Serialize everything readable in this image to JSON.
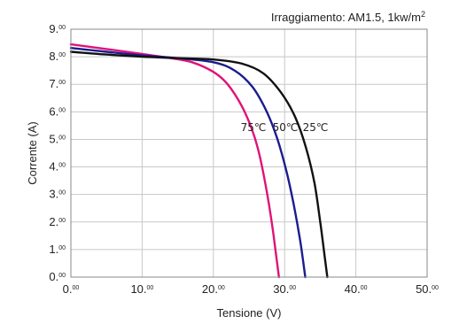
{
  "chart_data": {
    "type": "line",
    "title": "",
    "condition_text": "Irraggiamento: AM1.5, 1kw/m",
    "condition_sup": "2",
    "xlabel": "Tensione (V)",
    "ylabel": "Corrente (A)",
    "xlim": [
      0,
      50
    ],
    "ylim": [
      0,
      9
    ],
    "grid": true,
    "x_ticks": [
      {
        "main": "0.",
        "sub": "00"
      },
      {
        "main": "10.",
        "sub": "00"
      },
      {
        "main": "20.",
        "sub": "00"
      },
      {
        "main": "30.",
        "sub": "00"
      },
      {
        "main": "40.",
        "sub": "00"
      },
      {
        "main": "50.",
        "sub": "00"
      }
    ],
    "y_ticks": [
      {
        "main": "0.",
        "sub": "00"
      },
      {
        "main": "1.",
        "sub": "00"
      },
      {
        "main": "2.",
        "sub": "00"
      },
      {
        "main": "3.",
        "sub": "00"
      },
      {
        "main": "4.",
        "sub": "00"
      },
      {
        "main": "5.",
        "sub": "00"
      },
      {
        "main": "6.",
        "sub": "00"
      },
      {
        "main": "7.",
        "sub": "00"
      },
      {
        "main": "8.",
        "sub": "00"
      },
      {
        "main": "9.",
        "sub": "00"
      }
    ],
    "series": [
      {
        "name": "75℃",
        "color": "#e0127a",
        "points": [
          [
            0,
            8.45
          ],
          [
            5,
            8.28
          ],
          [
            10,
            8.1
          ],
          [
            14,
            7.95
          ],
          [
            17,
            7.8
          ],
          [
            20,
            7.45
          ],
          [
            22,
            7.0
          ],
          [
            24,
            6.2
          ],
          [
            25.5,
            5.3
          ],
          [
            26.5,
            4.4
          ],
          [
            27.5,
            3.1
          ],
          [
            28.3,
            1.8
          ],
          [
            28.8,
            0.8
          ],
          [
            29.2,
            0.0
          ]
        ]
      },
      {
        "name": "50℃",
        "color": "#1c1c8f",
        "points": [
          [
            0,
            8.32
          ],
          [
            5,
            8.18
          ],
          [
            10,
            8.05
          ],
          [
            15,
            7.95
          ],
          [
            20,
            7.8
          ],
          [
            23,
            7.5
          ],
          [
            25.5,
            6.9
          ],
          [
            27.5,
            6.0
          ],
          [
            29,
            5.0
          ],
          [
            30.3,
            3.8
          ],
          [
            31.3,
            2.6
          ],
          [
            32.2,
            1.3
          ],
          [
            32.9,
            0.0
          ]
        ]
      },
      {
        "name": "25℃",
        "color": "#111111",
        "points": [
          [
            0,
            8.18
          ],
          [
            5,
            8.08
          ],
          [
            10,
            8.0
          ],
          [
            15,
            7.95
          ],
          [
            20,
            7.9
          ],
          [
            24,
            7.75
          ],
          [
            27,
            7.4
          ],
          [
            29.5,
            6.7
          ],
          [
            31.5,
            5.8
          ],
          [
            33,
            4.7
          ],
          [
            34.2,
            3.4
          ],
          [
            35,
            2.0
          ],
          [
            35.6,
            0.8
          ],
          [
            36,
            0.0
          ]
        ]
      }
    ]
  }
}
